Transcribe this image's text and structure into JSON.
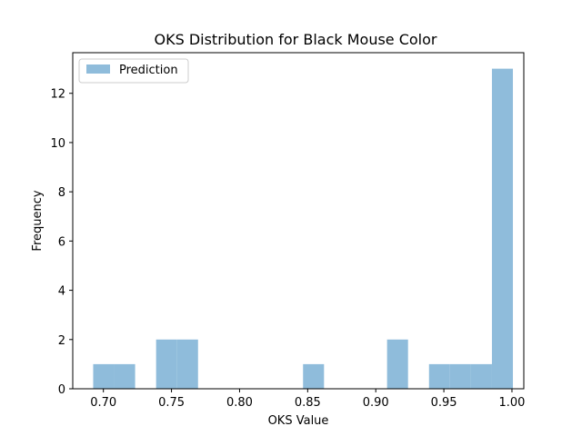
{
  "chart_data": {
    "type": "bar",
    "title": "OKS Distribution for Black Mouse Color",
    "xlabel": "OKS Value",
    "ylabel": "Frequency",
    "xlim": [
      0.6775,
      1.0087
    ],
    "ylim": [
      0,
      13.65
    ],
    "xticks": [
      0.7,
      0.75,
      0.8,
      0.85,
      0.9,
      0.95,
      1.0
    ],
    "xtick_labels": [
      "0.70",
      "0.75",
      "0.80",
      "0.85",
      "0.90",
      "0.95",
      "1.00"
    ],
    "yticks": [
      0,
      2,
      4,
      6,
      8,
      10,
      12
    ],
    "ytick_labels": [
      "0",
      "2",
      "4",
      "6",
      "8",
      "10",
      "12"
    ],
    "grid": false,
    "legend_position": "top-left",
    "series": [
      {
        "name": "Prediction",
        "color": "#8fbcdb",
        "bins": [
          {
            "x0": 0.6925,
            "x1": 0.7079,
            "count": 1
          },
          {
            "x0": 0.7079,
            "x1": 0.7233,
            "count": 1
          },
          {
            "x0": 0.7387,
            "x1": 0.7541,
            "count": 2
          },
          {
            "x0": 0.7541,
            "x1": 0.7695,
            "count": 2
          },
          {
            "x0": 0.8466,
            "x1": 0.862,
            "count": 1
          },
          {
            "x0": 0.9083,
            "x1": 0.9237,
            "count": 2
          },
          {
            "x0": 0.9391,
            "x1": 0.9545,
            "count": 1
          },
          {
            "x0": 0.9545,
            "x1": 0.9699,
            "count": 1
          },
          {
            "x0": 0.9699,
            "x1": 0.9853,
            "count": 1
          },
          {
            "x0": 0.9853,
            "x1": 1.0007,
            "count": 13
          }
        ]
      }
    ]
  }
}
